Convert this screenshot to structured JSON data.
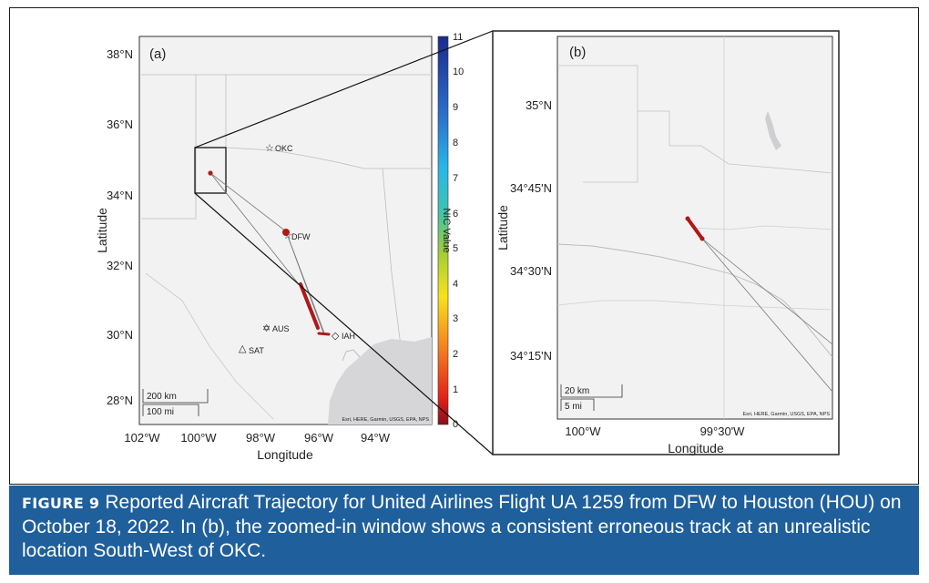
{
  "panel_a": {
    "label": "(a)",
    "y_ticks": [
      "38°N",
      "36°N",
      "34°N",
      "32°N",
      "30°N",
      "28°N"
    ],
    "x_ticks": [
      "102°W",
      "100°W",
      "98°W",
      "96°W",
      "94°W"
    ],
    "xlabel": "Longitude",
    "ylabel": "Latitude",
    "airports": [
      {
        "code": "OKC",
        "symbol": "star"
      },
      {
        "code": "DFW",
        "symbol": "star"
      },
      {
        "code": "AUS",
        "symbol": "star"
      },
      {
        "code": "SAT",
        "symbol": "triangle"
      },
      {
        "code": "IAH",
        "symbol": "diamond"
      }
    ],
    "scale_km": "200 km",
    "scale_mi": "100 mi",
    "attribution": "Esri, HERE, Garmin, USGS, EPA, NPS"
  },
  "colorbar": {
    "title": "NIC Value",
    "ticks": [
      "11",
      "10",
      "9",
      "8",
      "7",
      "6",
      "5",
      "4",
      "3",
      "2",
      "1",
      "0"
    ],
    "range": [
      0,
      11
    ]
  },
  "panel_b": {
    "label": "(b)",
    "y_ticks": [
      "35°N",
      "34°45'N",
      "34°30'N",
      "34°15'N"
    ],
    "x_ticks": [
      "100°W",
      "99°30'W"
    ],
    "xlabel": "Longitude",
    "ylabel": "Latitude",
    "scale_km": "20 km",
    "scale_mi": "5 mi",
    "attribution": "Esri, HERE, Garmin, USGS, EPA, NPS"
  },
  "colors": {
    "track": "#b01818",
    "caption_bg": "#1f5f9b",
    "water": "#d6d6d8",
    "map_bg": "#f2f2f2"
  },
  "caption": {
    "label": "FIGURE 9",
    "text": "Reported Aircraft Trajectory for United Airlines Flight UA 1259 from DFW to Houston (HOU) on October 18, 2022. In (b), the zoomed-in window shows a consistent erroneous track at an unrealistic location South-West of OKC."
  }
}
